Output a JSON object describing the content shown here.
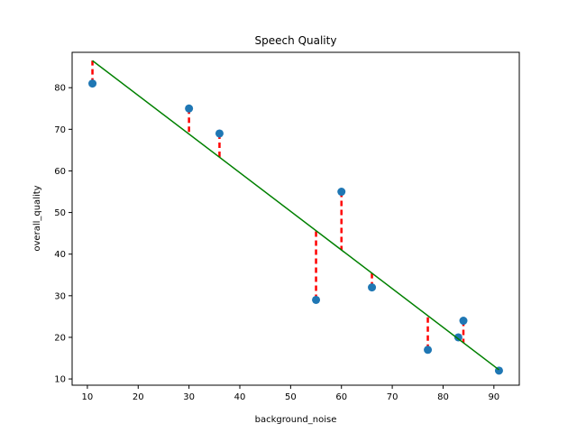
{
  "chart_data": {
    "type": "scatter",
    "title": "Speech Quality",
    "xlabel": "background_noise",
    "ylabel": "overall_quality",
    "xlim": [
      7,
      95
    ],
    "ylim": [
      8.5,
      88.5
    ],
    "xticks": [
      10,
      20,
      30,
      40,
      50,
      60,
      70,
      80,
      90
    ],
    "yticks": [
      10,
      20,
      30,
      40,
      50,
      60,
      70,
      80
    ],
    "grid": false,
    "points": {
      "x": [
        11,
        30,
        36,
        55,
        60,
        66,
        77,
        83,
        84,
        91
      ],
      "y": [
        81,
        75,
        69,
        29,
        55,
        32,
        17,
        20,
        24,
        12
      ],
      "color": "#1f77b4"
    },
    "regression_line": {
      "x": [
        11,
        91
      ],
      "y": [
        86.5,
        12.2
      ],
      "color": "#008000"
    },
    "residuals": {
      "color": "#ff0000",
      "style": "dashed"
    }
  }
}
